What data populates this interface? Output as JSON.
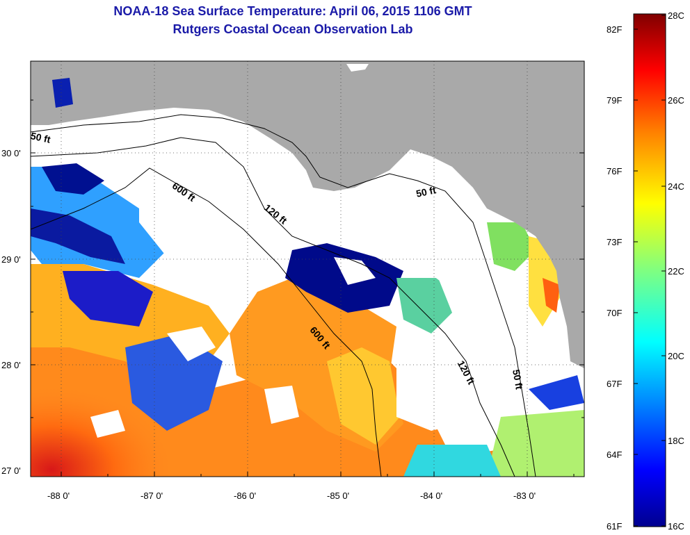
{
  "title_line1": "NOAA-18 Sea Surface Temperature:  April 06, 2015 1106 GMT",
  "title_line2": "Rutgers Coastal Ocean Observation Lab",
  "map": {
    "lat_labels": [
      "30 0'",
      "29 0'",
      "28 0'",
      "27 0'"
    ],
    "lon_labels": [
      "-88 0'",
      "-87 0'",
      "-86 0'",
      "-85 0'",
      "-84 0'",
      "-83 0'"
    ],
    "contour_labels": [
      "50 ft",
      "600 ft",
      "120 ft",
      "50 ft",
      "600 ft",
      "120 ft",
      "50 ft"
    ],
    "land_color": "#a9a9a9",
    "cloud_color": "#ffffff"
  },
  "colorbar": {
    "fahrenheit_labels": [
      "82F",
      "79F",
      "76F",
      "73F",
      "70F",
      "67F",
      "64F",
      "61F"
    ],
    "celsius_labels": [
      "28C",
      "26C",
      "24C",
      "22C",
      "20C",
      "18C",
      "16C"
    ],
    "min_c": 16,
    "max_c": 28,
    "colors": [
      "#00008f",
      "#0000ff",
      "#0080ff",
      "#00ffff",
      "#80ff80",
      "#ffff00",
      "#ff8000",
      "#ff0000",
      "#800000"
    ]
  }
}
